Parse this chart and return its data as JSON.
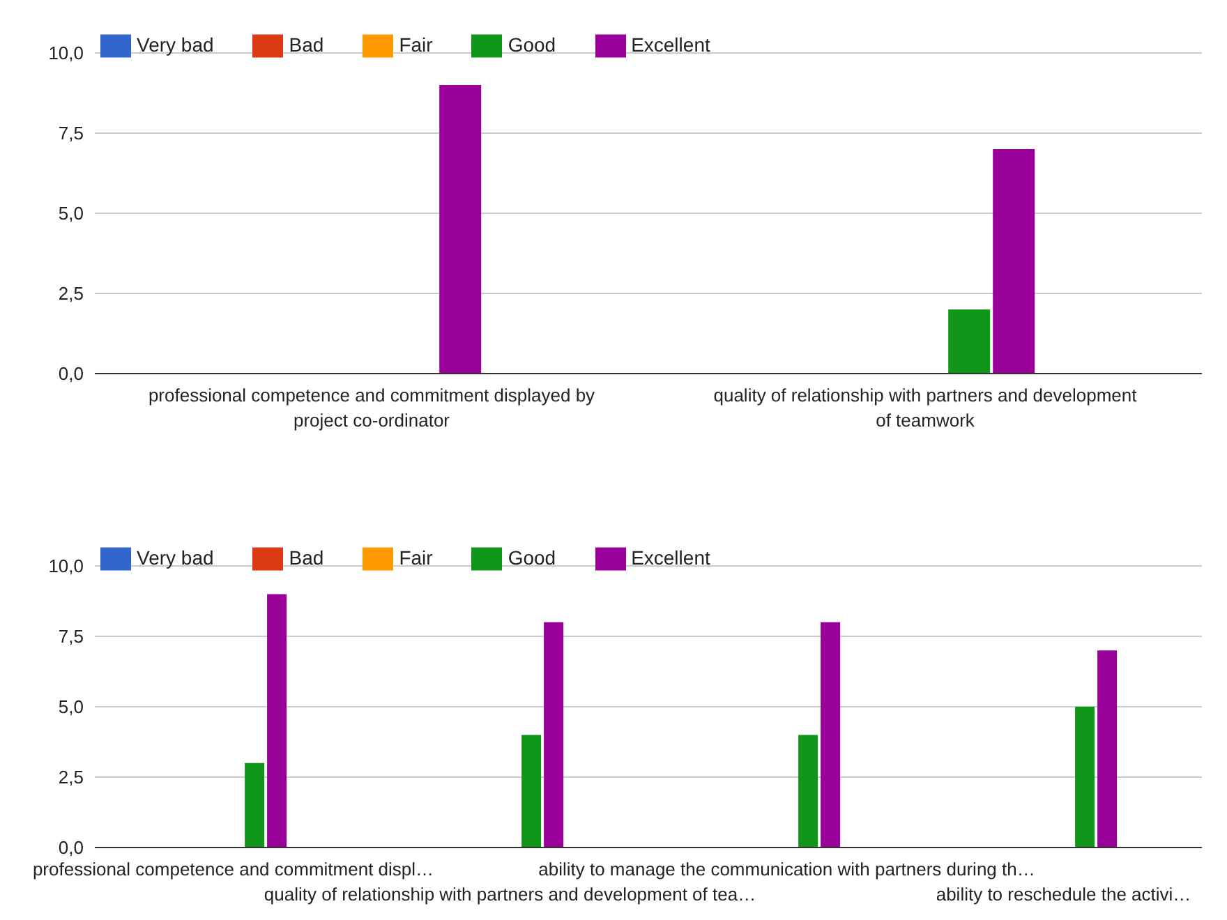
{
  "chart_data": [
    {
      "type": "bar",
      "categories": [
        "professional competence and commitment displayed by project co-ordinator",
        "quality of relationship with partners and development of teamwork"
      ],
      "series": [
        {
          "name": "Very bad",
          "color": "#3366cc",
          "values": [
            0,
            0
          ]
        },
        {
          "name": "Bad",
          "color": "#dc3912",
          "values": [
            0,
            0
          ]
        },
        {
          "name": "Fair",
          "color": "#ff9900",
          "values": [
            0,
            0
          ]
        },
        {
          "name": "Good",
          "color": "#109618",
          "values": [
            0,
            2
          ]
        },
        {
          "name": "Excellent",
          "color": "#990099",
          "values": [
            9,
            7
          ]
        }
      ],
      "ylim": [
        0,
        10
      ],
      "yticks": [
        {
          "value": 0,
          "label": "0,0"
        },
        {
          "value": 2.5,
          "label": "2,5"
        },
        {
          "value": 5,
          "label": "5,0"
        },
        {
          "value": 7.5,
          "label": "7,5"
        },
        {
          "value": 10,
          "label": "10,0"
        }
      ],
      "grid": "y",
      "legend": "top left"
    },
    {
      "type": "bar",
      "categories": [
        "professional competence and commitment displ…",
        "quality of relationship with partners and development of tea…",
        "ability to manage the communication with partners during th…",
        "ability to reschedule the activi…"
      ],
      "series": [
        {
          "name": "Very bad",
          "color": "#3366cc",
          "values": [
            0,
            0,
            0,
            0
          ]
        },
        {
          "name": "Bad",
          "color": "#dc3912",
          "values": [
            0,
            0,
            0,
            0
          ]
        },
        {
          "name": "Fair",
          "color": "#ff9900",
          "values": [
            0,
            0,
            0,
            0
          ]
        },
        {
          "name": "Good",
          "color": "#109618",
          "values": [
            3,
            4,
            4,
            5
          ]
        },
        {
          "name": "Excellent",
          "color": "#990099",
          "values": [
            9,
            8,
            8,
            7
          ]
        }
      ],
      "ylim": [
        0,
        10
      ],
      "yticks": [
        {
          "value": 0,
          "label": "0,0"
        },
        {
          "value": 2.5,
          "label": "2,5"
        },
        {
          "value": 5,
          "label": "5,0"
        },
        {
          "value": 7.5,
          "label": "7,5"
        },
        {
          "value": 10,
          "label": "10,0"
        }
      ],
      "grid": "y",
      "legend": "top left"
    }
  ]
}
